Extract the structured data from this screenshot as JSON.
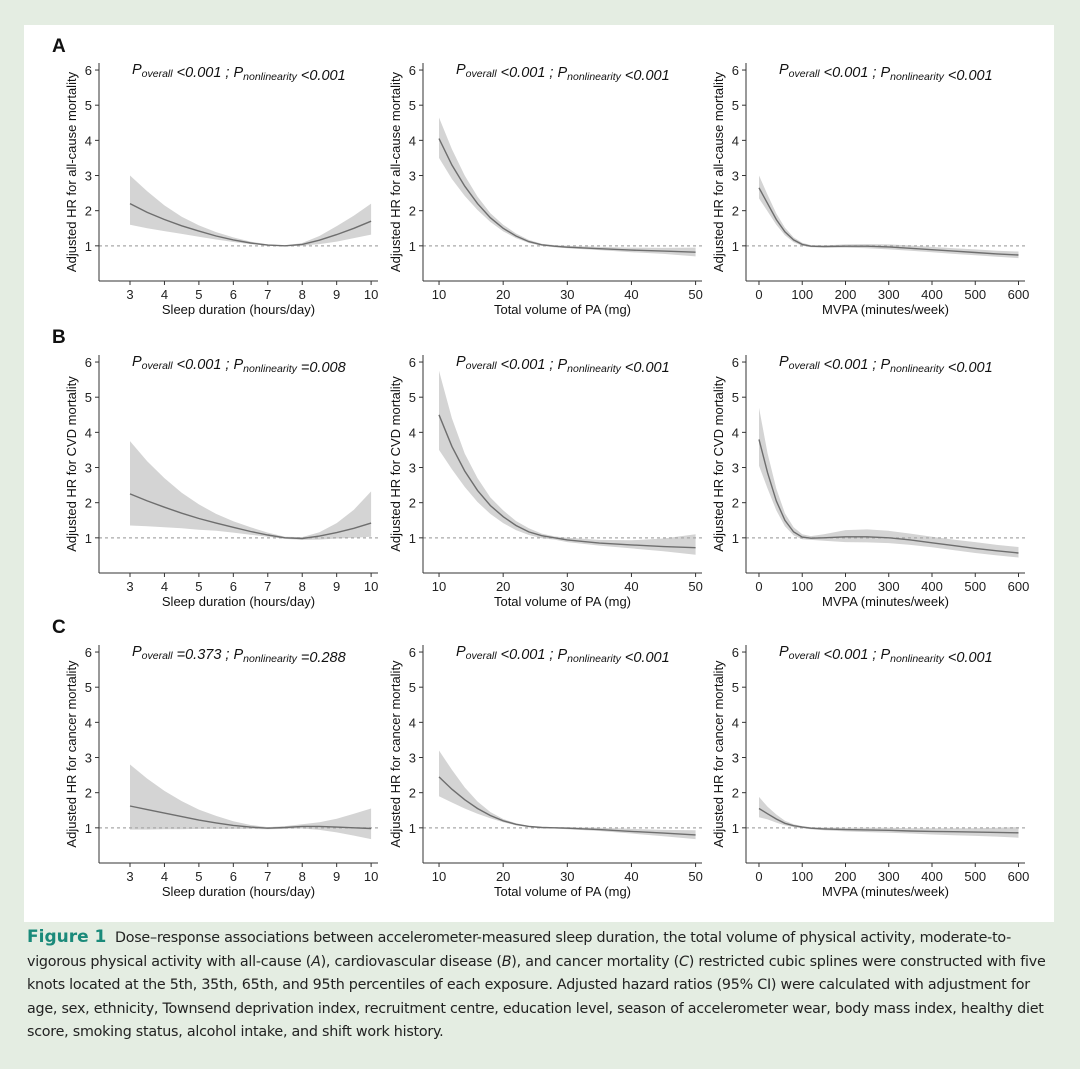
{
  "row_labels": [
    "A",
    "B",
    "C"
  ],
  "caption": {
    "label": "Figure 1",
    "text_1": "Dose–response associations between accelerometer-measured sleep duration, the total volume of physical activity, moderate-to-vigorous physical activity with all-cause (",
    "italic_1": "A",
    "text_2": "), cardiovascular disease (",
    "italic_2": "B",
    "text_3": "), and cancer mortality (",
    "italic_3": "C",
    "text_4": ") restricted cubic splines were constructed with five knots located at the 5th, 35th, 65th, and 95th percentiles of each exposure. Adjusted hazard ratios (95% CI) were calculated with adjustment for age, sex, ethnicity, Townsend deprivation index, recruitment centre, education level, season of accelerometer wear, body mass index, healthy diet score, smoking status, alcohol intake, and shift work history."
  },
  "colors": {
    "line": "#6e6e6e",
    "band": "#d4d4d4",
    "reference": "#a8a8a8",
    "axis": "#333333"
  },
  "chart_data": [
    {
      "type": "line",
      "row": "A",
      "xlabel": "Sleep duration (hours/day)",
      "ylabel": "Adjusted HR for all-cause mortality",
      "p_overall": "<0.001",
      "p_nonlinearity": "<0.001",
      "xlim": [
        2.1,
        10.2
      ],
      "ylim": [
        0,
        6.2
      ],
      "xticks": [
        3,
        4,
        5,
        6,
        7,
        8,
        9,
        10
      ],
      "yticks": [
        1,
        2,
        3,
        4,
        5,
        6
      ],
      "reference_y": 1,
      "x": [
        3,
        3.5,
        4,
        4.5,
        5,
        5.5,
        6,
        6.5,
        7,
        7.5,
        8,
        8.5,
        9,
        9.5,
        10
      ],
      "y": [
        2.2,
        1.95,
        1.75,
        1.57,
        1.42,
        1.28,
        1.17,
        1.08,
        1.02,
        1.0,
        1.04,
        1.16,
        1.32,
        1.5,
        1.7
      ],
      "lower": [
        1.6,
        1.5,
        1.42,
        1.34,
        1.26,
        1.18,
        1.11,
        1.05,
        1.0,
        0.99,
        1.0,
        1.05,
        1.12,
        1.22,
        1.32
      ],
      "upper": [
        3.0,
        2.55,
        2.15,
        1.83,
        1.58,
        1.39,
        1.24,
        1.12,
        1.04,
        1.01,
        1.08,
        1.28,
        1.56,
        1.86,
        2.2
      ]
    },
    {
      "type": "line",
      "row": "A",
      "xlabel": "Total volume of PA (mg)",
      "ylabel": "Adjusted HR for all-cause mortality",
      "p_overall": "<0.001",
      "p_nonlinearity": "<0.001",
      "xlim": [
        7.5,
        51
      ],
      "ylim": [
        0,
        6.2
      ],
      "xticks": [
        10,
        20,
        30,
        40,
        50
      ],
      "yticks": [
        1,
        2,
        3,
        4,
        5,
        6
      ],
      "reference_y": 1,
      "x": [
        10,
        12,
        14,
        16,
        18,
        20,
        22,
        24,
        26,
        28,
        30,
        35,
        40,
        45,
        50
      ],
      "y": [
        4.05,
        3.3,
        2.7,
        2.2,
        1.8,
        1.5,
        1.28,
        1.12,
        1.03,
        0.99,
        0.96,
        0.92,
        0.88,
        0.85,
        0.82
      ],
      "lower": [
        3.5,
        2.9,
        2.42,
        2.02,
        1.68,
        1.41,
        1.22,
        1.08,
        1.0,
        0.96,
        0.93,
        0.88,
        0.82,
        0.77,
        0.7
      ],
      "upper": [
        4.65,
        3.75,
        3.0,
        2.4,
        1.93,
        1.6,
        1.35,
        1.17,
        1.06,
        1.02,
        1.0,
        0.97,
        0.95,
        0.94,
        0.95
      ]
    },
    {
      "type": "line",
      "row": "A",
      "xlabel": "MVPA (minutes/week)",
      "ylabel": "Adjusted HR for all-cause mortality",
      "p_overall": "<0.001",
      "p_nonlinearity": "<0.001",
      "xlim": [
        -30,
        615
      ],
      "ylim": [
        0,
        6.2
      ],
      "xticks": [
        0,
        100,
        200,
        300,
        400,
        500,
        600
      ],
      "yticks": [
        1,
        2,
        3,
        4,
        5,
        6
      ],
      "reference_y": 1,
      "x": [
        0,
        20,
        40,
        60,
        80,
        100,
        120,
        150,
        200,
        250,
        300,
        350,
        400,
        450,
        500,
        550,
        600
      ],
      "y": [
        2.65,
        2.2,
        1.75,
        1.4,
        1.17,
        1.04,
        0.99,
        0.98,
        0.99,
        0.99,
        0.97,
        0.93,
        0.89,
        0.85,
        0.81,
        0.77,
        0.74
      ],
      "lower": [
        2.35,
        1.98,
        1.6,
        1.3,
        1.1,
        1.0,
        0.96,
        0.95,
        0.95,
        0.93,
        0.9,
        0.86,
        0.82,
        0.77,
        0.73,
        0.69,
        0.65
      ],
      "upper": [
        3.0,
        2.45,
        1.92,
        1.52,
        1.24,
        1.09,
        1.02,
        1.01,
        1.04,
        1.05,
        1.04,
        1.01,
        0.97,
        0.93,
        0.9,
        0.86,
        0.84
      ]
    },
    {
      "type": "line",
      "row": "B",
      "xlabel": "Sleep duration (hours/day)",
      "ylabel": "Adjusted HR for CVD mortality",
      "p_overall": "<0.001",
      "p_nonlinearity": "=0.008",
      "xlim": [
        2.1,
        10.2
      ],
      "ylim": [
        0,
        6.2
      ],
      "xticks": [
        3,
        4,
        5,
        6,
        7,
        8,
        9,
        10
      ],
      "yticks": [
        1,
        2,
        3,
        4,
        5,
        6
      ],
      "reference_y": 1,
      "x": [
        3,
        3.5,
        4,
        4.5,
        5,
        5.5,
        6,
        6.5,
        7,
        7.5,
        8,
        8.5,
        9,
        9.5,
        10
      ],
      "y": [
        2.25,
        2.05,
        1.87,
        1.7,
        1.55,
        1.42,
        1.3,
        1.18,
        1.08,
        1.0,
        0.98,
        1.05,
        1.15,
        1.27,
        1.42
      ],
      "lower": [
        1.35,
        1.33,
        1.3,
        1.27,
        1.23,
        1.2,
        1.15,
        1.09,
        1.03,
        0.97,
        0.94,
        0.95,
        0.98,
        1.0,
        1.03
      ],
      "upper": [
        3.75,
        3.18,
        2.7,
        2.28,
        1.95,
        1.68,
        1.47,
        1.3,
        1.15,
        1.03,
        1.02,
        1.16,
        1.42,
        1.8,
        2.32
      ]
    },
    {
      "type": "line",
      "row": "B",
      "xlabel": "Total volume of PA (mg)",
      "ylabel": "Adjusted HR for CVD mortality",
      "p_overall": "<0.001",
      "p_nonlinearity": "<0.001",
      "xlim": [
        7.5,
        51
      ],
      "ylim": [
        0,
        6.2
      ],
      "xticks": [
        10,
        20,
        30,
        40,
        50
      ],
      "yticks": [
        1,
        2,
        3,
        4,
        5,
        6
      ],
      "reference_y": 1,
      "x": [
        10,
        12,
        14,
        16,
        18,
        20,
        22,
        24,
        26,
        28,
        30,
        35,
        40,
        45,
        50
      ],
      "y": [
        4.5,
        3.6,
        2.9,
        2.35,
        1.92,
        1.6,
        1.35,
        1.17,
        1.06,
        1.0,
        0.94,
        0.85,
        0.8,
        0.75,
        0.72
      ],
      "lower": [
        3.5,
        2.95,
        2.45,
        2.02,
        1.68,
        1.42,
        1.22,
        1.08,
        0.99,
        0.95,
        0.88,
        0.78,
        0.7,
        0.62,
        0.52
      ],
      "upper": [
        5.75,
        4.4,
        3.4,
        2.7,
        2.15,
        1.78,
        1.48,
        1.27,
        1.12,
        1.04,
        1.0,
        0.94,
        0.93,
        0.98,
        1.1
      ]
    },
    {
      "type": "line",
      "row": "B",
      "xlabel": "MVPA (minutes/week)",
      "ylabel": "Adjusted HR for CVD mortality",
      "p_overall": "<0.001",
      "p_nonlinearity": "<0.001",
      "xlim": [
        -30,
        615
      ],
      "ylim": [
        0,
        6.2
      ],
      "xticks": [
        0,
        100,
        200,
        300,
        400,
        500,
        600
      ],
      "yticks": [
        1,
        2,
        3,
        4,
        5,
        6
      ],
      "reference_y": 1,
      "x": [
        0,
        20,
        40,
        60,
        80,
        100,
        120,
        150,
        200,
        250,
        300,
        350,
        400,
        450,
        500,
        550,
        600
      ],
      "y": [
        3.8,
        2.85,
        2.05,
        1.5,
        1.17,
        1.02,
        0.99,
        1.0,
        1.03,
        1.03,
        1.0,
        0.94,
        0.86,
        0.78,
        0.7,
        0.63,
        0.57
      ],
      "lower": [
        3.05,
        2.4,
        1.78,
        1.33,
        1.07,
        0.96,
        0.94,
        0.92,
        0.88,
        0.87,
        0.85,
        0.8,
        0.73,
        0.65,
        0.57,
        0.5,
        0.44
      ],
      "upper": [
        4.7,
        3.4,
        2.4,
        1.7,
        1.3,
        1.1,
        1.05,
        1.1,
        1.22,
        1.24,
        1.2,
        1.12,
        1.03,
        0.95,
        0.88,
        0.8,
        0.74
      ]
    },
    {
      "type": "line",
      "row": "C",
      "xlabel": "Sleep duration (hours/day)",
      "ylabel": "Adjusted HR for cancer mortality",
      "p_overall": "=0.373",
      "p_nonlinearity": "=0.288",
      "xlim": [
        2.1,
        10.2
      ],
      "ylim": [
        0,
        6.2
      ],
      "xticks": [
        3,
        4,
        5,
        6,
        7,
        8,
        9,
        10
      ],
      "yticks": [
        1,
        2,
        3,
        4,
        5,
        6
      ],
      "reference_y": 1,
      "x": [
        3,
        3.5,
        4,
        4.5,
        5,
        5.5,
        6,
        6.5,
        7,
        7.5,
        8,
        8.5,
        9,
        9.5,
        10
      ],
      "y": [
        1.62,
        1.52,
        1.42,
        1.32,
        1.22,
        1.14,
        1.07,
        1.02,
        0.99,
        1.01,
        1.04,
        1.04,
        1.02,
        1.0,
        0.98
      ],
      "lower": [
        0.95,
        0.95,
        0.96,
        0.96,
        0.97,
        0.97,
        0.97,
        0.97,
        0.96,
        0.97,
        0.98,
        0.94,
        0.87,
        0.78,
        0.68
      ],
      "upper": [
        2.8,
        2.4,
        2.05,
        1.76,
        1.52,
        1.34,
        1.19,
        1.08,
        1.02,
        1.05,
        1.1,
        1.16,
        1.26,
        1.4,
        1.55
      ]
    },
    {
      "type": "line",
      "row": "C",
      "xlabel": "Total volume of PA (mg)",
      "ylabel": "Adjusted HR for cancer mortality",
      "p_overall": "<0.001",
      "p_nonlinearity": "<0.001",
      "xlim": [
        7.5,
        51
      ],
      "ylim": [
        0,
        6.2
      ],
      "xticks": [
        10,
        20,
        30,
        40,
        50
      ],
      "yticks": [
        1,
        2,
        3,
        4,
        5,
        6
      ],
      "reference_y": 1,
      "x": [
        10,
        12,
        14,
        16,
        18,
        20,
        22,
        24,
        26,
        28,
        30,
        35,
        40,
        45,
        50
      ],
      "y": [
        2.45,
        2.1,
        1.8,
        1.55,
        1.35,
        1.2,
        1.1,
        1.04,
        1.01,
        1.0,
        0.99,
        0.95,
        0.9,
        0.85,
        0.8
      ],
      "lower": [
        1.9,
        1.72,
        1.55,
        1.4,
        1.27,
        1.16,
        1.07,
        1.02,
        0.99,
        0.98,
        0.96,
        0.91,
        0.84,
        0.76,
        0.68
      ],
      "upper": [
        3.2,
        2.65,
        2.15,
        1.75,
        1.45,
        1.25,
        1.13,
        1.06,
        1.03,
        1.02,
        1.02,
        1.0,
        0.97,
        0.94,
        0.93
      ]
    },
    {
      "type": "line",
      "row": "C",
      "xlabel": "MVPA (minutes/week)",
      "ylabel": "Adjusted HR for cancer mortality",
      "p_overall": "<0.001",
      "p_nonlinearity": "<0.001",
      "xlim": [
        -30,
        615
      ],
      "ylim": [
        0,
        6.2
      ],
      "xticks": [
        0,
        100,
        200,
        300,
        400,
        500,
        600
      ],
      "yticks": [
        1,
        2,
        3,
        4,
        5,
        6
      ],
      "reference_y": 1,
      "x": [
        0,
        20,
        40,
        60,
        80,
        100,
        120,
        150,
        200,
        250,
        300,
        350,
        400,
        450,
        500,
        550,
        600
      ],
      "y": [
        1.55,
        1.4,
        1.25,
        1.13,
        1.06,
        1.02,
        0.99,
        0.97,
        0.95,
        0.94,
        0.93,
        0.91,
        0.9,
        0.89,
        0.88,
        0.87,
        0.86
      ],
      "lower": [
        1.3,
        1.24,
        1.15,
        1.07,
        1.02,
        0.99,
        0.96,
        0.93,
        0.9,
        0.88,
        0.86,
        0.84,
        0.81,
        0.79,
        0.77,
        0.75,
        0.72
      ],
      "upper": [
        1.88,
        1.6,
        1.38,
        1.2,
        1.1,
        1.05,
        1.02,
        1.01,
        1.0,
        1.0,
        1.0,
        0.99,
        0.99,
        0.99,
        0.99,
        1.0,
        1.02
      ]
    }
  ]
}
